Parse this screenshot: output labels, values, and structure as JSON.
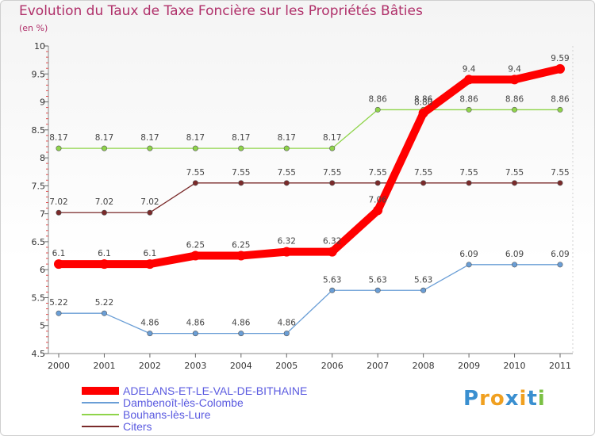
{
  "chart_data": {
    "type": "line",
    "title": "Evolution du Taux de Taxe Foncière sur les Propriétés Bâties",
    "ylabel": "(en %)",
    "xlabel": "",
    "x": [
      "2000",
      "2001",
      "2002",
      "2003",
      "2004",
      "2005",
      "2006",
      "2007",
      "2008",
      "2009",
      "2010",
      "2011"
    ],
    "ylim": [
      4.5,
      10
    ],
    "yticks": [
      "4.5",
      "5",
      "5.5",
      "6",
      "6.5",
      "7",
      "7.5",
      "8",
      "8.5",
      "9",
      "9.5",
      "10"
    ],
    "grid": false,
    "series": [
      {
        "name": "ADELANS-ET-LE-VAL-DE-BITHAINE",
        "color": "#ff0000",
        "emphasis": true,
        "values": [
          6.1,
          6.1,
          6.1,
          6.25,
          6.25,
          6.32,
          6.32,
          7.06,
          8.8,
          9.4,
          9.4,
          9.59
        ],
        "labels": [
          "6.1",
          "6.1",
          "6.1",
          "6.25",
          "6.25",
          "6.32",
          "6.32",
          "7.06",
          "8.80",
          "9.4",
          "9.4",
          "9.59"
        ]
      },
      {
        "name": "Dambenoît-lès-Colombe",
        "color": "#6a9ed6",
        "emphasis": false,
        "values": [
          5.22,
          5.22,
          4.86,
          4.86,
          4.86,
          4.86,
          5.63,
          5.63,
          5.63,
          6.09,
          6.09,
          6.09
        ],
        "labels": [
          "5.22",
          "5.22",
          "4.86",
          "4.86",
          "4.86",
          "4.86",
          "5.63",
          "5.63",
          "5.63",
          "6.09",
          "6.09",
          "6.09"
        ]
      },
      {
        "name": "Bouhans-lès-Lure",
        "color": "#8fd44a",
        "emphasis": false,
        "values": [
          8.17,
          8.17,
          8.17,
          8.17,
          8.17,
          8.17,
          8.17,
          8.86,
          8.86,
          8.86,
          8.86,
          8.86
        ],
        "labels": [
          "8.17",
          "8.17",
          "8.17",
          "8.17",
          "8.17",
          "8.17",
          "8.17",
          "8.86",
          "8.86",
          "8.86",
          "8.86",
          "8.86"
        ]
      },
      {
        "name": "Citers",
        "color": "#7a2a2a",
        "emphasis": false,
        "values": [
          7.02,
          7.02,
          7.02,
          7.55,
          7.55,
          7.55,
          7.55,
          7.55,
          7.55,
          7.55,
          7.55,
          7.55
        ],
        "labels": [
          "7.02",
          "7.02",
          "7.02",
          "7.55",
          "7.55",
          "7.55",
          "7.55",
          "7.55",
          "7.55",
          "7.55",
          "7.55",
          "7.55"
        ]
      }
    ]
  },
  "logo": {
    "letters": [
      "P",
      "r",
      "o",
      "x",
      "i",
      "t",
      "i"
    ],
    "colors": [
      "#3a8fd0",
      "#f0a020",
      "#f0a020",
      "#3a8fd0",
      "#f0a020",
      "#3a8fd0",
      "#7ac043"
    ]
  }
}
